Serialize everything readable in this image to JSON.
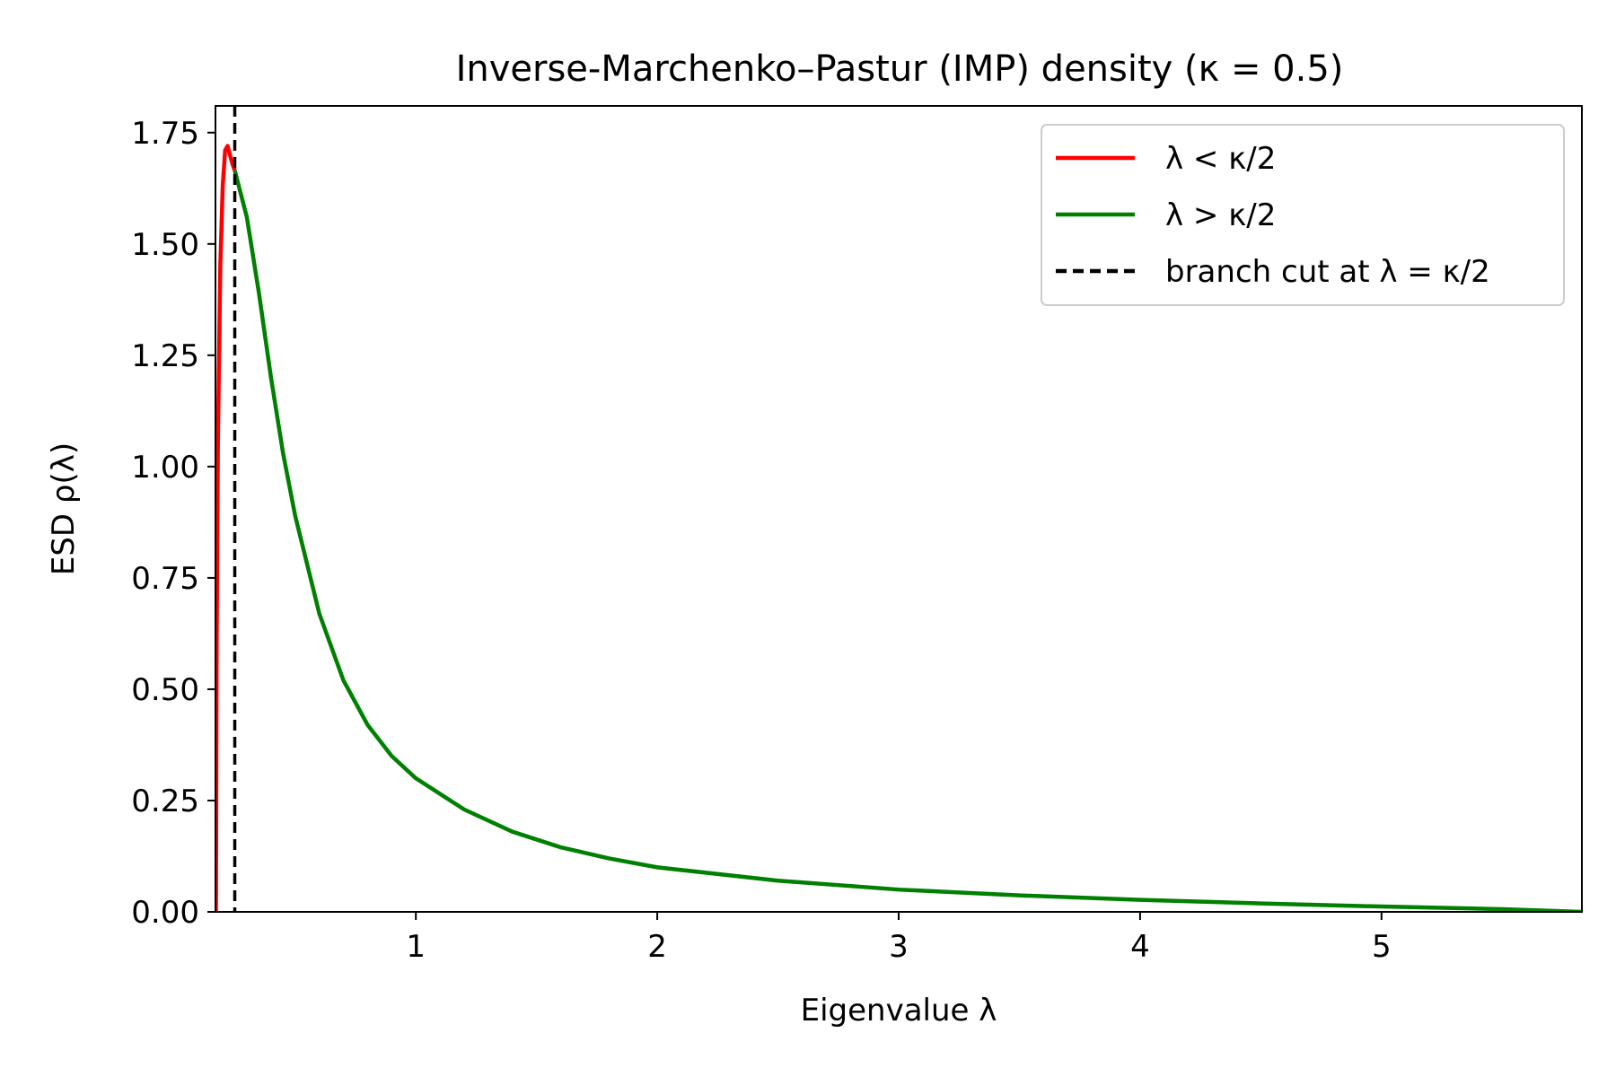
{
  "chart_data": {
    "type": "line",
    "title": "Inverse-Marchenko–Pastur (IMP) density  (κ = 0.5)",
    "xlabel": "Eigenvalue λ",
    "ylabel": "ESD ρ(λ)",
    "xlim": [
      0.17,
      5.83
    ],
    "ylim": [
      0,
      1.81
    ],
    "xticks": [
      1,
      2,
      3,
      4,
      5
    ],
    "xtick_labels": [
      "1",
      "2",
      "3",
      "4",
      "5"
    ],
    "yticks": [
      0,
      0.25,
      0.5,
      0.75,
      1.0,
      1.25,
      1.5,
      1.75
    ],
    "ytick_labels": [
      "0.00",
      "0.25",
      "0.50",
      "0.75",
      "1.00",
      "1.25",
      "1.50",
      "1.75"
    ],
    "grid": false,
    "legend_position": "top-right",
    "branch_cut": {
      "x": 0.25,
      "label": "branch cut at λ = κ/2",
      "color": "#000000",
      "style": "dashed"
    },
    "series": [
      {
        "name": "λ < κ/2",
        "color": "#ff0000",
        "x": [
          0.172,
          0.175,
          0.18,
          0.19,
          0.2,
          0.21,
          0.22,
          0.23,
          0.24,
          0.25
        ],
        "y": [
          0.0,
          0.6,
          1.05,
          1.45,
          1.63,
          1.71,
          1.72,
          1.7,
          1.68,
          1.665
        ]
      },
      {
        "name": "λ > κ/2",
        "color": "#008000",
        "x": [
          0.25,
          0.3,
          0.35,
          0.4,
          0.45,
          0.5,
          0.6,
          0.7,
          0.8,
          0.9,
          1.0,
          1.2,
          1.4,
          1.6,
          1.8,
          2.0,
          2.5,
          3.0,
          3.5,
          4.0,
          4.5,
          5.0,
          5.5,
          5.83
        ],
        "y": [
          1.665,
          1.56,
          1.39,
          1.2,
          1.03,
          0.89,
          0.67,
          0.52,
          0.42,
          0.35,
          0.3,
          0.23,
          0.18,
          0.145,
          0.12,
          0.1,
          0.07,
          0.05,
          0.037,
          0.027,
          0.019,
          0.012,
          0.006,
          0.0
        ]
      }
    ]
  }
}
